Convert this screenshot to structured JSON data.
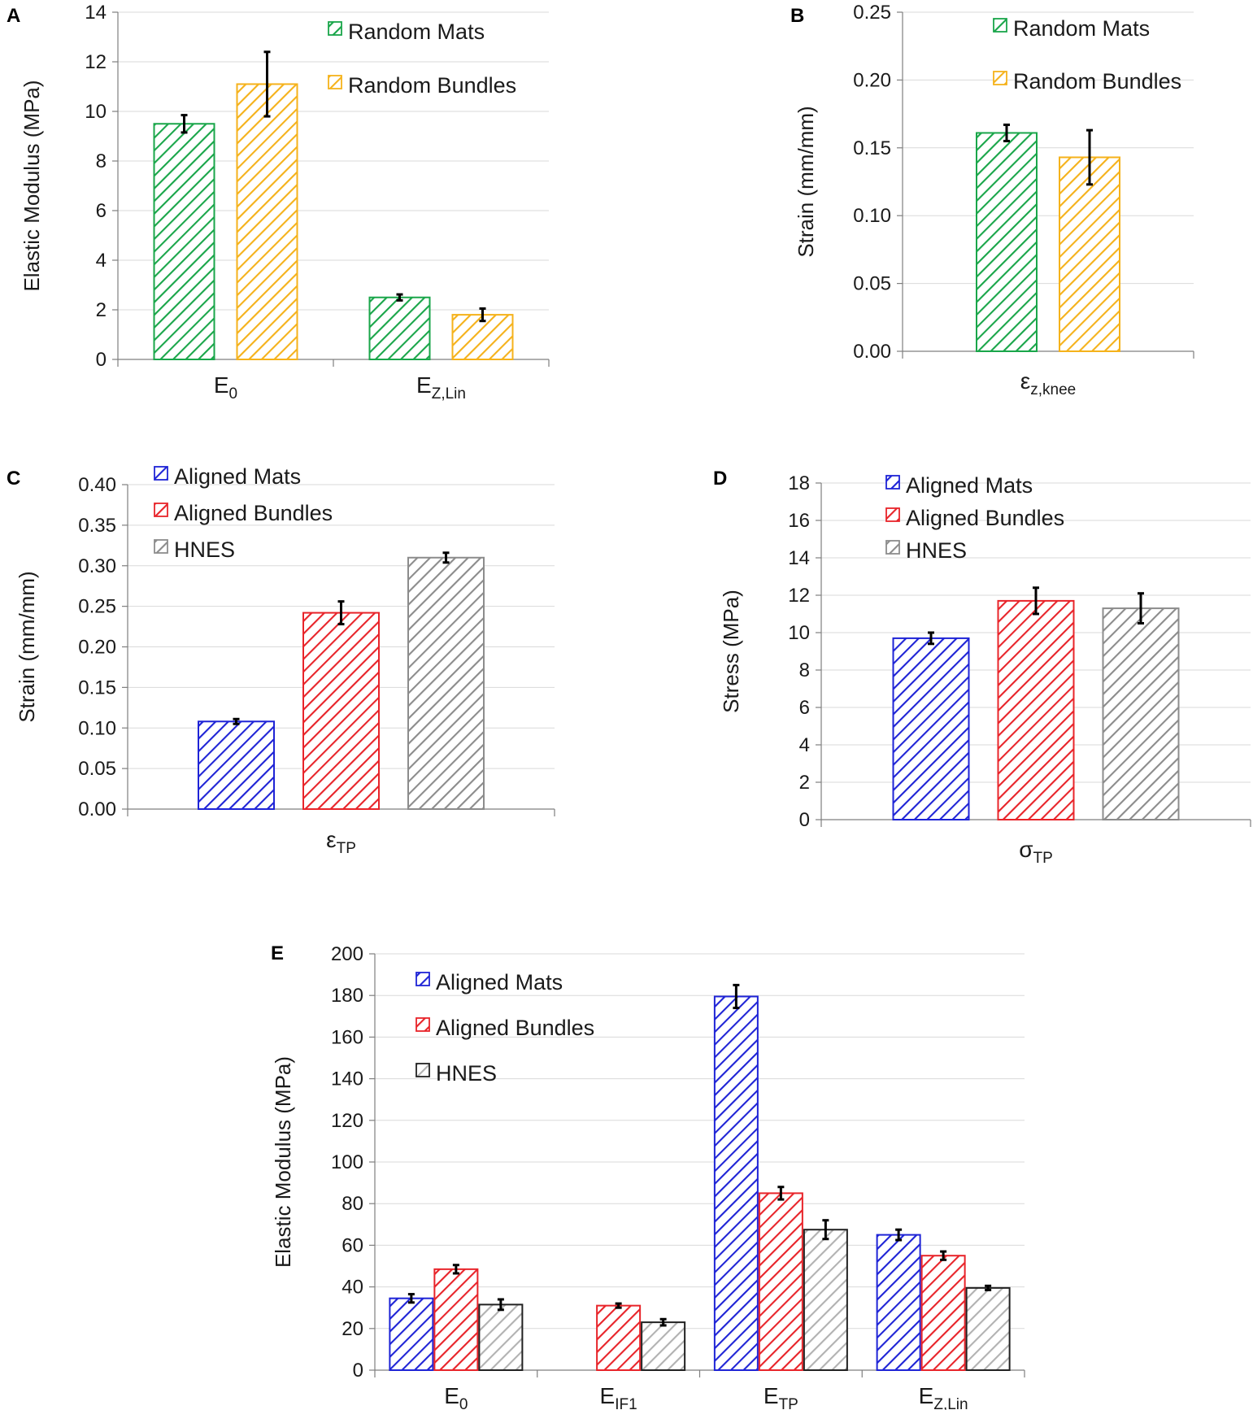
{
  "figure": {
    "colors": {
      "green": "#1aa64a",
      "orange": "#f5b21b",
      "blue": "#1f24d6",
      "red": "#e8242a",
      "gray": "#8c8c8c",
      "lightgray": "#b2b2b2",
      "error": "#000000",
      "grid": "#d9d9d9"
    }
  },
  "chart_data": [
    {
      "id": "A",
      "panel_label": "A",
      "type": "bar",
      "ylabel": "Elastic Modulus (MPa)",
      "ylim": [
        0,
        14
      ],
      "yticks": [
        "0",
        "2",
        "4",
        "6",
        "8",
        "10",
        "12",
        "14"
      ],
      "categories": [
        {
          "main": "E",
          "sub": "0"
        },
        {
          "main": "E",
          "sub": "Z,Lin"
        }
      ],
      "legend": [
        "Random Mats",
        "Random Bundles"
      ],
      "series": [
        {
          "name": "Random Mats",
          "color": "green",
          "values": [
            9.5,
            2.5
          ],
          "errors": [
            0.35,
            0.12
          ]
        },
        {
          "name": "Random Bundles",
          "color": "orange",
          "values": [
            11.1,
            1.8
          ],
          "errors": [
            1.3,
            0.25
          ]
        }
      ]
    },
    {
      "id": "B",
      "panel_label": "B",
      "type": "bar",
      "ylabel": "Strain (mm/mm)",
      "ylim": [
        0,
        0.25
      ],
      "yticks": [
        "0.00",
        "0.05",
        "0.10",
        "0.15",
        "0.20",
        "0.25"
      ],
      "categories": [
        {
          "main": "ε",
          "sub": "z,knee"
        }
      ],
      "legend": [
        "Random Mats",
        "Random Bundles"
      ],
      "series": [
        {
          "name": "Random Mats",
          "color": "green",
          "values": [
            0.161
          ],
          "errors": [
            0.006
          ]
        },
        {
          "name": "Random Bundles",
          "color": "orange",
          "values": [
            0.143
          ],
          "errors": [
            0.02
          ]
        }
      ]
    },
    {
      "id": "C",
      "panel_label": "C",
      "type": "bar",
      "ylabel": "Strain (mm/mm)",
      "ylim": [
        0,
        0.4
      ],
      "yticks": [
        "0.00",
        "0.05",
        "0.10",
        "0.15",
        "0.20",
        "0.25",
        "0.30",
        "0.35",
        "0.40"
      ],
      "categories": [
        {
          "main": "ε",
          "sub": "TP"
        }
      ],
      "legend": [
        "Aligned Mats",
        "Aligned Bundles",
        "HNES"
      ],
      "series": [
        {
          "name": "Aligned Mats",
          "color": "blue",
          "values": [
            0.108
          ],
          "errors": [
            0.003
          ]
        },
        {
          "name": "Aligned Bundles",
          "color": "red",
          "values": [
            0.242
          ],
          "errors": [
            0.014
          ]
        },
        {
          "name": "HNES",
          "color": "gray",
          "values": [
            0.31
          ],
          "errors": [
            0.006
          ]
        }
      ]
    },
    {
      "id": "D",
      "panel_label": "D",
      "type": "bar",
      "ylabel": "Stress (MPa)",
      "ylim": [
        0,
        18
      ],
      "yticks": [
        "0",
        "2",
        "4",
        "6",
        "8",
        "10",
        "12",
        "14",
        "16",
        "18"
      ],
      "categories": [
        {
          "main": "σ",
          "sub": "TP"
        }
      ],
      "legend": [
        "Aligned Mats",
        "Aligned Bundles",
        "HNES"
      ],
      "series": [
        {
          "name": "Aligned Mats",
          "color": "blue",
          "values": [
            9.7
          ],
          "errors": [
            0.3
          ]
        },
        {
          "name": "Aligned Bundles",
          "color": "red",
          "values": [
            11.7
          ],
          "errors": [
            0.7
          ]
        },
        {
          "name": "HNES",
          "color": "gray",
          "values": [
            11.3
          ],
          "errors": [
            0.8
          ]
        }
      ]
    },
    {
      "id": "E",
      "panel_label": "E",
      "type": "bar",
      "ylabel": "Elastic Modulus (MPa)",
      "ylim": [
        0,
        200
      ],
      "yticks": [
        "0",
        "20",
        "40",
        "60",
        "80",
        "100",
        "120",
        "140",
        "160",
        "180",
        "200"
      ],
      "categories": [
        {
          "main": "E",
          "sub": "0"
        },
        {
          "main": "E",
          "sub": "IF1"
        },
        {
          "main": "E",
          "sub": "TP"
        },
        {
          "main": "E",
          "sub": "Z,Lin"
        }
      ],
      "legend": [
        "Aligned Mats",
        "Aligned Bundles",
        "HNES"
      ],
      "series": [
        {
          "name": "Aligned Mats",
          "color": "blue",
          "values": [
            34.5,
            null,
            179.5,
            65
          ],
          "errors": [
            2.0,
            null,
            5.5,
            2.5
          ]
        },
        {
          "name": "Aligned Bundles",
          "color": "red",
          "values": [
            48.5,
            31,
            85,
            55
          ],
          "errors": [
            2.0,
            1.0,
            3.0,
            2.0
          ]
        },
        {
          "name": "HNES",
          "color": "lightgray",
          "values": [
            31.5,
            23,
            67.5,
            39.5
          ],
          "errors": [
            2.5,
            1.5,
            4.5,
            1.0
          ]
        }
      ]
    }
  ]
}
